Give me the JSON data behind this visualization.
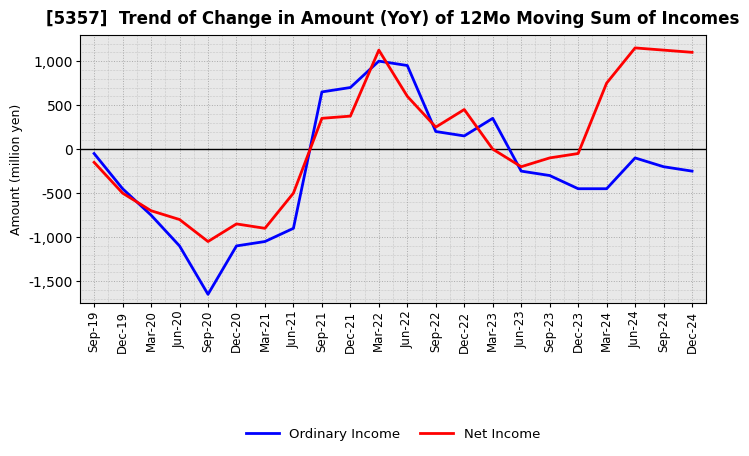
{
  "title": "[5357]  Trend of Change in Amount (YoY) of 12Mo Moving Sum of Incomes",
  "ylabel": "Amount (million yen)",
  "labels": [
    "Sep-19",
    "Dec-19",
    "Mar-20",
    "Jun-20",
    "Sep-20",
    "Dec-20",
    "Mar-21",
    "Jun-21",
    "Sep-21",
    "Dec-21",
    "Mar-22",
    "Jun-22",
    "Sep-22",
    "Dec-22",
    "Mar-23",
    "Jun-23",
    "Sep-23",
    "Dec-23",
    "Mar-24",
    "Jun-24",
    "Sep-24",
    "Dec-24"
  ],
  "ordinary_income": [
    -50,
    -450,
    -750,
    -1100,
    -1650,
    -1100,
    -1050,
    -900,
    650,
    700,
    1000,
    950,
    200,
    150,
    350,
    -250,
    -300,
    -450,
    -450,
    -100,
    -200,
    -250
  ],
  "net_income": [
    -150,
    -500,
    -700,
    -800,
    -1050,
    -850,
    -900,
    -500,
    350,
    375,
    1125,
    600,
    250,
    450,
    0,
    -200,
    -100,
    -50,
    750,
    1150,
    1125,
    1100
  ],
  "ordinary_color": "#0000ff",
  "net_color": "#ff0000",
  "ylim": [
    -1750,
    1300
  ],
  "yticks": [
    -1500,
    -1000,
    -500,
    0,
    500,
    1000
  ],
  "plot_bg_color": "#e8e8e8",
  "fig_bg_color": "#ffffff",
  "grid_color": "#aaaaaa",
  "title_fontsize": 12,
  "axis_label_fontsize": 9,
  "tick_label_fontsize": 8.5
}
